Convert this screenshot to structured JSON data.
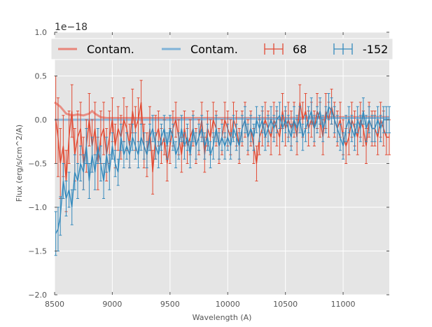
{
  "chart_data": {
    "type": "line",
    "title": "",
    "xlabel": "Wavelength (A)",
    "ylabel": "Flux (erg/s/cm^2/A)",
    "offset_label": "1e−18",
    "xlim": [
      8500,
      11400
    ],
    "ylim": [
      -2.0,
      1.0
    ],
    "y_scale_factor": "1e-18",
    "x_ticks": [
      8500,
      9000,
      9500,
      10000,
      10500,
      11000
    ],
    "y_ticks": [
      -2.0,
      -1.5,
      -1.0,
      -0.5,
      0.0,
      0.5,
      1.0
    ],
    "x_tick_labels": [
      "8500",
      "9000",
      "9500",
      "10000",
      "10500",
      "11000"
    ],
    "y_tick_labels": [
      "−2.0",
      "−1.5",
      "−1.0",
      "−0.5",
      "0.0",
      "0.5",
      "1.0"
    ],
    "grid": true,
    "legend_position": "top",
    "legend": [
      "Contam.",
      "Contam.",
      "68",
      "-152"
    ],
    "colors": {
      "red": "#e24a33",
      "blue": "#348abd",
      "red_contam": "#e8857a",
      "blue_contam": "#7fb2d8",
      "background": "#e5e5e5",
      "grid": "#ffffff"
    },
    "contamination": [
      {
        "name": "Contam.",
        "color": "#e8857a",
        "x": [
          8500,
          8550,
          8600,
          8650,
          8700,
          8750,
          8800,
          8825,
          8850,
          8900,
          8950,
          9000,
          9200,
          9500,
          10000,
          10500,
          11000,
          11400
        ],
        "y": [
          0.2,
          0.15,
          0.07,
          0.05,
          0.06,
          0.05,
          0.07,
          0.1,
          0.07,
          0.03,
          0.02,
          0.02,
          0.02,
          0.02,
          0.02,
          0.02,
          0.03,
          0.03
        ]
      },
      {
        "name": "Contam.",
        "color": "#7fb2d8",
        "x": [
          8500,
          9000,
          9500,
          10000,
          10500,
          11000,
          11400
        ],
        "y": [
          0.0,
          0.0,
          0.0,
          0.01,
          0.01,
          0.02,
          0.02
        ]
      }
    ],
    "series": [
      {
        "name": "68",
        "color": "#e24a33",
        "x": [
          8510,
          8530,
          8550,
          8575,
          8600,
          8625,
          8650,
          8675,
          8700,
          8725,
          8750,
          8775,
          8800,
          8825,
          8850,
          8875,
          8900,
          8925,
          8950,
          8975,
          9000,
          9025,
          9050,
          9075,
          9100,
          9125,
          9150,
          9175,
          9200,
          9225,
          9250,
          9275,
          9300,
          9325,
          9350,
          9375,
          9400,
          9425,
          9450,
          9475,
          9500,
          9525,
          9550,
          9575,
          9600,
          9625,
          9650,
          9675,
          9700,
          9725,
          9750,
          9775,
          9800,
          9825,
          9850,
          9875,
          9900,
          9925,
          9950,
          9975,
          10000,
          10025,
          10050,
          10075,
          10100,
          10125,
          10150,
          10175,
          10200,
          10225,
          10250,
          10275,
          10300,
          10325,
          10350,
          10375,
          10400,
          10425,
          10450,
          10475,
          10500,
          10525,
          10550,
          10575,
          10600,
          10625,
          10650,
          10675,
          10700,
          10725,
          10750,
          10775,
          10800,
          10825,
          10850,
          10875,
          10900,
          10925,
          10950,
          10975,
          11000,
          11025,
          11050,
          11075,
          11100,
          11125,
          11150,
          11175,
          11200,
          11225,
          11250,
          11275,
          11300,
          11325,
          11350,
          11375,
          11400
        ],
        "y": [
          0.0,
          -0.2,
          -0.5,
          -0.3,
          -0.7,
          -0.2,
          0.1,
          -0.4,
          -0.2,
          -0.1,
          -0.5,
          -0.3,
          0.0,
          -0.3,
          -0.1,
          -0.5,
          -0.2,
          -0.1,
          -0.4,
          -0.2,
          0.0,
          -0.3,
          -0.1,
          -0.2,
          0.0,
          -0.1,
          -0.3,
          0.1,
          -0.1,
          0.0,
          0.2,
          -0.3,
          -0.4,
          -0.1,
          -0.6,
          -0.2,
          -0.1,
          -0.3,
          -0.2,
          -0.5,
          -0.3,
          -0.1,
          0.0,
          -0.2,
          -0.4,
          -0.1,
          -0.3,
          -0.2,
          -0.1,
          -0.3,
          -0.2,
          0.0,
          -0.4,
          -0.1,
          -0.2,
          0.0,
          -0.1,
          -0.3,
          -0.2,
          0.0,
          -0.1,
          -0.2,
          0.0,
          -0.1,
          -0.3,
          -0.1,
          0.0,
          -0.2,
          -0.1,
          -0.3,
          -0.5,
          -0.2,
          -0.1,
          0.0,
          -0.1,
          -0.2,
          0.0,
          -0.1,
          -0.2,
          0.1,
          -0.1,
          0.0,
          -0.1,
          0.0,
          -0.2,
          0.2,
          0.0,
          0.1,
          -0.1,
          0.0,
          -0.1,
          0.1,
          0.0,
          -0.2,
          0.1,
          0.0,
          0.15,
          0.0,
          -0.1,
          0.0,
          -0.2,
          -0.3,
          -0.2,
          0.0,
          -0.1,
          -0.2,
          0.0,
          -0.1,
          -0.3,
          0.0,
          -0.1,
          -0.1,
          -0.2,
          0.0,
          -0.1,
          -0.2,
          -0.2
        ],
        "err": [
          0.5,
          0.45,
          0.4,
          0.35,
          0.35,
          0.3,
          0.3,
          0.3,
          0.3,
          0.3,
          0.3,
          0.3,
          0.3,
          0.3,
          0.3,
          0.3,
          0.3,
          0.3,
          0.3,
          0.3,
          0.25,
          0.25,
          0.25,
          0.25,
          0.25,
          0.25,
          0.25,
          0.25,
          0.25,
          0.25,
          0.25,
          0.25,
          0.25,
          0.25,
          0.25,
          0.25,
          0.2,
          0.2,
          0.2,
          0.2,
          0.2,
          0.2,
          0.2,
          0.2,
          0.2,
          0.2,
          0.2,
          0.2,
          0.2,
          0.2,
          0.2,
          0.2,
          0.2,
          0.2,
          0.2,
          0.2,
          0.2,
          0.2,
          0.2,
          0.2,
          0.2,
          0.2,
          0.2,
          0.2,
          0.2,
          0.2,
          0.2,
          0.2,
          0.2,
          0.2,
          0.2,
          0.2,
          0.2,
          0.2,
          0.2,
          0.2,
          0.2,
          0.2,
          0.2,
          0.2,
          0.2,
          0.2,
          0.2,
          0.2,
          0.2,
          0.2,
          0.2,
          0.2,
          0.2,
          0.2,
          0.2,
          0.2,
          0.2,
          0.2,
          0.2,
          0.2,
          0.2,
          0.2,
          0.2,
          0.2,
          0.2,
          0.2,
          0.2,
          0.2,
          0.2,
          0.2,
          0.2,
          0.2,
          0.2,
          0.2,
          0.2,
          0.2,
          0.2,
          0.2,
          0.2,
          0.2,
          0.2
        ]
      },
      {
        "name": "-152",
        "color": "#348abd",
        "x": [
          8510,
          8530,
          8550,
          8575,
          8600,
          8625,
          8650,
          8675,
          8700,
          8725,
          8750,
          8775,
          8800,
          8825,
          8850,
          8875,
          8900,
          8925,
          8950,
          8975,
          9000,
          9025,
          9050,
          9075,
          9100,
          9125,
          9150,
          9175,
          9200,
          9225,
          9250,
          9275,
          9300,
          9325,
          9350,
          9375,
          9400,
          9425,
          9450,
          9475,
          9500,
          9525,
          9550,
          9575,
          9600,
          9625,
          9650,
          9675,
          9700,
          9725,
          9750,
          9775,
          9800,
          9825,
          9850,
          9875,
          9900,
          9925,
          9950,
          9975,
          10000,
          10025,
          10050,
          10075,
          10100,
          10125,
          10150,
          10175,
          10200,
          10225,
          10250,
          10275,
          10300,
          10325,
          10350,
          10375,
          10400,
          10425,
          10450,
          10475,
          10500,
          10525,
          10550,
          10575,
          10600,
          10625,
          10650,
          10675,
          10700,
          10725,
          10750,
          10775,
          10800,
          10825,
          10850,
          10875,
          10900,
          10925,
          10950,
          10975,
          11000,
          11025,
          11050,
          11075,
          11100,
          11125,
          11150,
          11175,
          11200,
          11225,
          11250,
          11275,
          11300,
          11325,
          11350,
          11375,
          11400
        ],
        "y": [
          -1.3,
          -1.25,
          -1.1,
          -0.7,
          -0.9,
          -0.8,
          -1.0,
          -0.6,
          -0.7,
          -0.5,
          -0.6,
          -0.3,
          -0.7,
          -0.4,
          -0.6,
          -0.3,
          -0.5,
          -0.7,
          -0.4,
          -0.6,
          -0.3,
          -0.5,
          -0.6,
          -0.2,
          -0.4,
          -0.3,
          -0.4,
          -0.2,
          -0.3,
          -0.4,
          -0.2,
          -0.3,
          -0.4,
          -0.2,
          -0.1,
          -0.3,
          -0.4,
          -0.2,
          -0.1,
          -0.3,
          -0.1,
          -0.2,
          -0.4,
          -0.3,
          -0.1,
          -0.3,
          -0.2,
          -0.4,
          -0.1,
          -0.3,
          -0.2,
          -0.1,
          -0.3,
          -0.2,
          -0.4,
          -0.3,
          -0.1,
          -0.3,
          -0.2,
          -0.3,
          -0.2,
          -0.3,
          -0.1,
          -0.2,
          -0.3,
          -0.1,
          0.0,
          -0.2,
          -0.1,
          -0.2,
          0.0,
          -0.1,
          0.0,
          -0.2,
          -0.1,
          0.0,
          -0.1,
          0.0,
          0.05,
          -0.1,
          0.0,
          -0.1,
          -0.2,
          0.0,
          -0.1,
          0.0,
          -0.2,
          -0.1,
          0.0,
          0.1,
          -0.1,
          0.0,
          0.1,
          -0.1,
          0.0,
          0.15,
          0.1,
          0.0,
          -0.1,
          -0.2,
          -0.3,
          -0.1,
          0.0,
          -0.1,
          -0.2,
          0.0,
          -0.1,
          0.1,
          -0.1,
          0.0,
          -0.1,
          -0.1,
          0.0,
          -0.1,
          0.0,
          0.0,
          0.0
        ],
        "err": [
          0.25,
          0.25,
          0.22,
          0.2,
          0.2,
          0.2,
          0.2,
          0.2,
          0.2,
          0.2,
          0.2,
          0.2,
          0.2,
          0.2,
          0.2,
          0.2,
          0.2,
          0.2,
          0.2,
          0.2,
          0.15,
          0.15,
          0.15,
          0.15,
          0.15,
          0.15,
          0.15,
          0.15,
          0.15,
          0.15,
          0.15,
          0.15,
          0.15,
          0.15,
          0.15,
          0.15,
          0.15,
          0.15,
          0.15,
          0.15,
          0.15,
          0.15,
          0.15,
          0.15,
          0.15,
          0.15,
          0.15,
          0.15,
          0.15,
          0.15,
          0.15,
          0.15,
          0.15,
          0.15,
          0.15,
          0.15,
          0.15,
          0.15,
          0.15,
          0.15,
          0.15,
          0.15,
          0.15,
          0.15,
          0.15,
          0.15,
          0.15,
          0.15,
          0.15,
          0.15,
          0.15,
          0.15,
          0.15,
          0.15,
          0.15,
          0.15,
          0.15,
          0.15,
          0.15,
          0.15,
          0.15,
          0.15,
          0.15,
          0.15,
          0.15,
          0.15,
          0.15,
          0.15,
          0.15,
          0.15,
          0.15,
          0.15,
          0.15,
          0.15,
          0.15,
          0.15,
          0.15,
          0.15,
          0.15,
          0.15,
          0.15,
          0.15,
          0.15,
          0.15,
          0.15,
          0.15,
          0.15,
          0.15,
          0.15,
          0.15,
          0.15,
          0.15,
          0.15,
          0.15,
          0.15,
          0.15,
          0.15
        ]
      }
    ]
  }
}
